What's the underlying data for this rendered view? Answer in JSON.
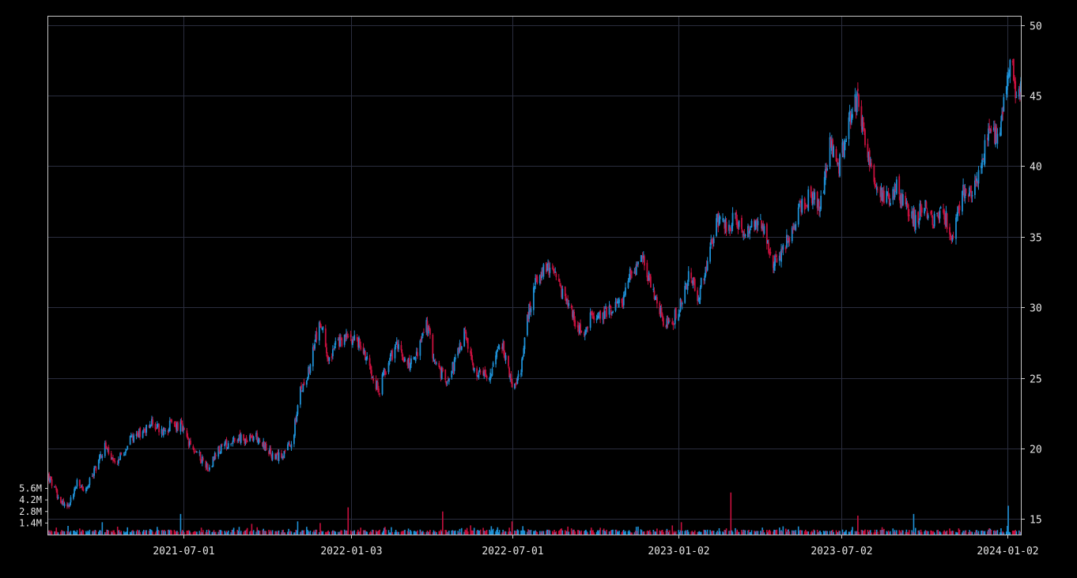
{
  "chart_data": {
    "type": "candlestick",
    "title": "",
    "xlabel": "",
    "ylabel": "",
    "x_range": [
      "2021-02-01",
      "2024-01-17"
    ],
    "ylim": [
      13.9,
      50.6
    ],
    "y_ticks": [
      15,
      20,
      25,
      30,
      35,
      40,
      45,
      50
    ],
    "x_ticks": [
      "2021-07-01",
      "2022-01-03",
      "2022-07-01",
      "2023-01-02",
      "2023-07-02",
      "2024-01-02"
    ],
    "volume_ticks": [
      "1.4M",
      "2.8M",
      "4.2M",
      "5.6M"
    ],
    "volume_tick_values": [
      1400000,
      2800000,
      4200000,
      5600000
    ],
    "grid": true,
    "up_color": "#1e90d6",
    "down_color": "#c8103e",
    "close_path": [
      [
        "2021-02-01",
        18.0
      ],
      [
        "2021-02-12",
        16.6
      ],
      [
        "2021-02-22",
        15.8
      ],
      [
        "2021-03-05",
        17.5
      ],
      [
        "2021-03-15",
        17.0
      ],
      [
        "2021-03-25",
        18.6
      ],
      [
        "2021-04-05",
        20.2
      ],
      [
        "2021-04-15",
        18.8
      ],
      [
        "2021-04-26",
        19.8
      ],
      [
        "2021-05-06",
        20.9
      ],
      [
        "2021-05-17",
        21.3
      ],
      [
        "2021-05-27",
        21.8
      ],
      [
        "2021-06-07",
        21.2
      ],
      [
        "2021-06-17",
        21.7
      ],
      [
        "2021-06-28",
        21.6
      ],
      [
        "2021-07-08",
        20.2
      ],
      [
        "2021-07-19",
        19.5
      ],
      [
        "2021-07-29",
        18.6
      ],
      [
        "2021-08-09",
        19.8
      ],
      [
        "2021-08-19",
        20.4
      ],
      [
        "2021-08-30",
        20.8
      ],
      [
        "2021-09-09",
        20.5
      ],
      [
        "2021-09-20",
        20.9
      ],
      [
        "2021-09-30",
        20.1
      ],
      [
        "2021-10-11",
        19.2
      ],
      [
        "2021-10-21",
        19.8
      ],
      [
        "2021-10-29",
        20.2
      ],
      [
        "2021-11-08",
        24.0
      ],
      [
        "2021-11-18",
        25.8
      ],
      [
        "2021-11-30",
        29.0
      ],
      [
        "2021-12-09",
        26.5
      ],
      [
        "2021-12-20",
        27.5
      ],
      [
        "2022-01-03",
        28.0
      ],
      [
        "2022-01-14",
        27.3
      ],
      [
        "2022-01-24",
        26.0
      ],
      [
        "2022-02-03",
        24.0
      ],
      [
        "2022-02-14",
        26.4
      ],
      [
        "2022-02-24",
        27.2
      ],
      [
        "2022-03-07",
        26.0
      ],
      [
        "2022-03-17",
        26.6
      ],
      [
        "2022-03-28",
        28.8
      ],
      [
        "2022-04-07",
        26.0
      ],
      [
        "2022-04-18",
        24.8
      ],
      [
        "2022-04-28",
        26.0
      ],
      [
        "2022-05-09",
        28.2
      ],
      [
        "2022-05-19",
        25.5
      ],
      [
        "2022-05-30",
        25.0
      ],
      [
        "2022-06-09",
        25.6
      ],
      [
        "2022-06-20",
        27.5
      ],
      [
        "2022-06-30",
        24.6
      ],
      [
        "2022-07-11",
        25.4
      ],
      [
        "2022-07-18",
        29.2
      ],
      [
        "2022-07-28",
        32.0
      ],
      [
        "2022-08-08",
        32.8
      ],
      [
        "2022-08-18",
        32.0
      ],
      [
        "2022-08-29",
        30.4
      ],
      [
        "2022-09-08",
        29.2
      ],
      [
        "2022-09-19",
        28.2
      ],
      [
        "2022-09-29",
        29.6
      ],
      [
        "2022-10-10",
        29.5
      ],
      [
        "2022-10-20",
        30.0
      ],
      [
        "2022-10-31",
        30.3
      ],
      [
        "2022-11-10",
        32.4
      ],
      [
        "2022-11-21",
        33.6
      ],
      [
        "2022-12-01",
        32.0
      ],
      [
        "2022-12-12",
        29.6
      ],
      [
        "2022-12-22",
        28.6
      ],
      [
        "2023-01-03",
        30.0
      ],
      [
        "2023-01-13",
        32.2
      ],
      [
        "2023-01-24",
        30.8
      ],
      [
        "2023-02-03",
        33.4
      ],
      [
        "2023-02-14",
        36.0
      ],
      [
        "2023-02-24",
        35.6
      ],
      [
        "2023-03-07",
        36.4
      ],
      [
        "2023-03-17",
        35.0
      ],
      [
        "2023-03-28",
        35.8
      ],
      [
        "2023-04-07",
        35.6
      ],
      [
        "2023-04-17",
        33.0
      ],
      [
        "2023-04-28",
        34.2
      ],
      [
        "2023-05-08",
        35.2
      ],
      [
        "2023-05-18",
        37.2
      ],
      [
        "2023-05-29",
        38.0
      ],
      [
        "2023-06-08",
        37.2
      ],
      [
        "2023-06-19",
        41.6
      ],
      [
        "2023-06-29",
        40.0
      ],
      [
        "2023-07-10",
        43.0
      ],
      [
        "2023-07-20",
        45.0
      ],
      [
        "2023-07-31",
        40.6
      ],
      [
        "2023-08-10",
        38.8
      ],
      [
        "2023-08-21",
        37.6
      ],
      [
        "2023-08-31",
        38.6
      ],
      [
        "2023-09-11",
        37.0
      ],
      [
        "2023-09-21",
        36.2
      ],
      [
        "2023-10-02",
        37.2
      ],
      [
        "2023-10-12",
        36.2
      ],
      [
        "2023-10-23",
        36.8
      ],
      [
        "2023-11-02",
        35.2
      ],
      [
        "2023-11-13",
        38.2
      ],
      [
        "2023-11-23",
        37.8
      ],
      [
        "2023-12-04",
        40.4
      ],
      [
        "2023-12-14",
        42.4
      ],
      [
        "2023-12-22",
        42.0
      ],
      [
        "2024-01-02",
        46.0
      ],
      [
        "2024-01-05",
        48.0
      ],
      [
        "2024-01-09",
        46.2
      ],
      [
        "2024-01-12",
        45.2
      ],
      [
        "2024-01-17",
        45.8
      ]
    ],
    "volume_spikes": [
      [
        "2021-04-02",
        1500000
      ],
      [
        "2021-06-28",
        2500000
      ],
      [
        "2021-09-15",
        1300000
      ],
      [
        "2021-11-05",
        1600000
      ],
      [
        "2021-11-30",
        1400000
      ],
      [
        "2021-12-31",
        3300000
      ],
      [
        "2022-04-15",
        2800000
      ],
      [
        "2022-07-01",
        1600000
      ],
      [
        "2023-01-05",
        1500000
      ],
      [
        "2023-03-01",
        5100000
      ],
      [
        "2023-07-20",
        2300000
      ],
      [
        "2023-09-20",
        2500000
      ],
      [
        "2024-01-03",
        3500000
      ]
    ]
  }
}
